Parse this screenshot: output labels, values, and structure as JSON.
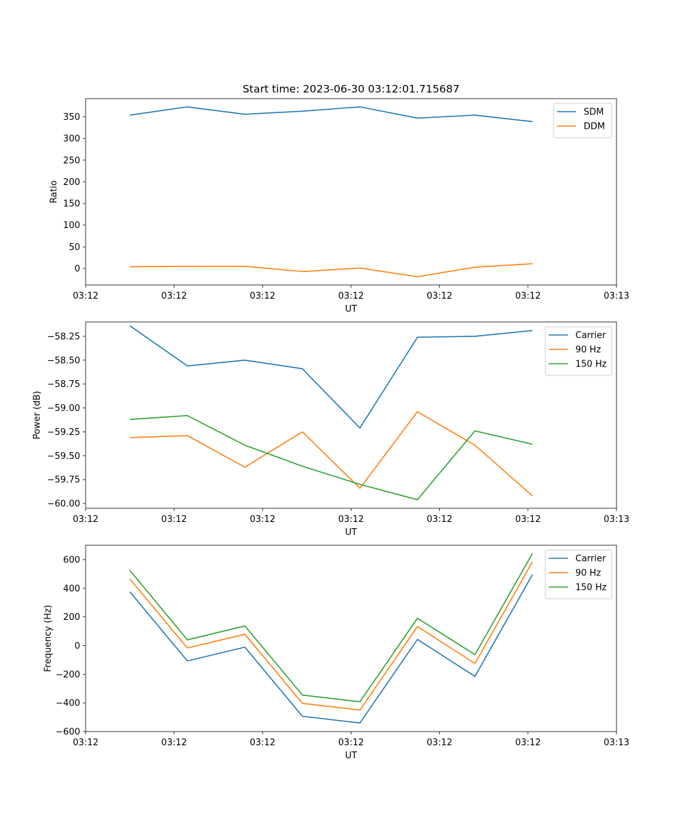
{
  "chart_data": [
    {
      "type": "line",
      "title": "Start time: 2023-06-30 03:12:01.715687",
      "xlabel": "UT",
      "ylabel": "Ratio",
      "x_tick_labels": [
        "03:12",
        "03:12",
        "03:12",
        "03:12",
        "03:12",
        "03:12",
        "03:13"
      ],
      "xlim": [
        0,
        12
      ],
      "ylim": [
        -38,
        392
      ],
      "y_ticks": [
        0,
        50,
        100,
        150,
        200,
        250,
        300,
        350
      ],
      "y_tick_labels": [
        "0",
        "50",
        "100",
        "150",
        "200",
        "250",
        "300",
        "350"
      ],
      "x": [
        1,
        2.3,
        3.6,
        4.9,
        6.2,
        7.5,
        8.8,
        10.1
      ],
      "legend_position": "upper right",
      "grid": false,
      "series": [
        {
          "name": "SDM",
          "color": "#1f77b4",
          "values": [
            354,
            373,
            356,
            363,
            373,
            347,
            354,
            339
          ]
        },
        {
          "name": "DDM",
          "color": "#ff7f0e",
          "values": [
            4,
            5,
            5,
            -7,
            1,
            -19,
            3,
            11
          ]
        }
      ]
    },
    {
      "type": "line",
      "title": "",
      "xlabel": "UT",
      "ylabel": "Power (dB)",
      "x_tick_labels": [
        "03:12",
        "03:12",
        "03:12",
        "03:12",
        "03:12",
        "03:12",
        "03:13"
      ],
      "xlim": [
        0,
        12
      ],
      "ylim": [
        -60.05,
        -58.1
      ],
      "y_ticks": [
        -60.0,
        -59.75,
        -59.5,
        -59.25,
        -59.0,
        -58.75,
        -58.5,
        -58.25
      ],
      "y_tick_labels": [
        "−60.00",
        "−59.75",
        "−59.50",
        "−59.25",
        "−59.00",
        "−58.75",
        "−58.50",
        "−58.25"
      ],
      "x": [
        1,
        2.3,
        3.6,
        4.9,
        6.2,
        7.5,
        8.8,
        10.1
      ],
      "legend_position": "upper right",
      "grid": false,
      "series": [
        {
          "name": "Carrier",
          "color": "#1f77b4",
          "values": [
            -58.14,
            -58.56,
            -58.5,
            -58.59,
            -59.21,
            -58.26,
            -58.25,
            -58.19
          ]
        },
        {
          "name": "90 Hz",
          "color": "#ff7f0e",
          "values": [
            -59.31,
            -59.29,
            -59.62,
            -59.25,
            -59.84,
            -59.04,
            -59.39,
            -59.92
          ]
        },
        {
          "name": "150 Hz",
          "color": "#2ca02c",
          "values": [
            -59.12,
            -59.08,
            -59.39,
            -59.61,
            -59.8,
            -59.96,
            -59.24,
            -59.38
          ]
        }
      ]
    },
    {
      "type": "line",
      "title": "",
      "xlabel": "UT",
      "ylabel": "Frequency (Hz)",
      "x_tick_labels": [
        "03:12",
        "03:12",
        "03:12",
        "03:12",
        "03:12",
        "03:12",
        "03:13"
      ],
      "xlim": [
        0,
        12
      ],
      "ylim": [
        -600,
        700
      ],
      "y_ticks": [
        -600,
        -400,
        -200,
        0,
        200,
        400,
        600
      ],
      "y_tick_labels": [
        "−600",
        "−400",
        "−200",
        "0",
        "200",
        "400",
        "600"
      ],
      "x": [
        1,
        2.3,
        3.6,
        4.9,
        6.2,
        7.5,
        8.8,
        10.1
      ],
      "legend_position": "upper right",
      "grid": false,
      "series": [
        {
          "name": "Carrier",
          "color": "#1f77b4",
          "values": [
            375,
            -107,
            -11,
            -493,
            -540,
            43,
            -215,
            495
          ]
        },
        {
          "name": "90 Hz",
          "color": "#ff7f0e",
          "values": [
            465,
            -17,
            79,
            -403,
            -450,
            133,
            -125,
            585
          ]
        },
        {
          "name": "150 Hz",
          "color": "#2ca02c",
          "values": [
            525,
            40,
            137,
            -345,
            -392,
            191,
            -63,
            643
          ]
        }
      ]
    }
  ]
}
